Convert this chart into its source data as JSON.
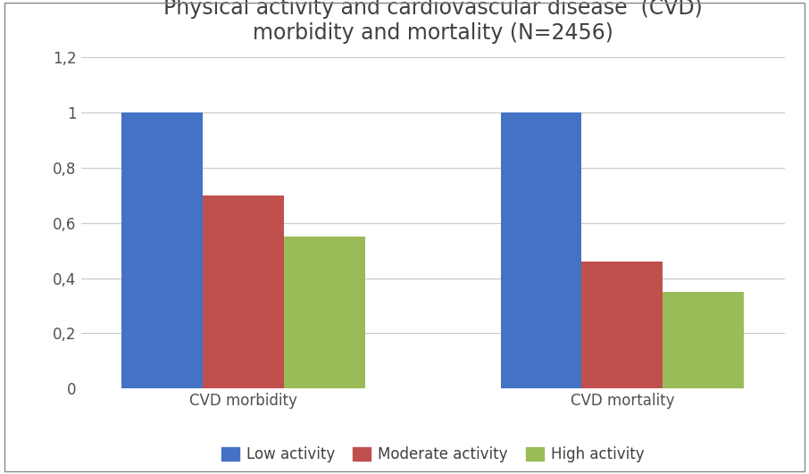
{
  "title_line1": "Physical activity and cardiovascular disease  (CVD)",
  "title_line2": "morbidity and mortality (N=2456)",
  "categories": [
    "CVD morbidity",
    "CVD mortality"
  ],
  "series": {
    "Low activity": {
      "values": [
        1.0,
        1.0
      ],
      "color": "#4472C4"
    },
    "Moderate activity": {
      "values": [
        0.7,
        0.46
      ],
      "color": "#C0504D"
    },
    "High activity": {
      "values": [
        0.55,
        0.35
      ],
      "color": "#9BBB59"
    }
  },
  "ylim": [
    0,
    1.2
  ],
  "yticks": [
    0,
    0.2,
    0.4,
    0.6,
    0.8,
    1.0,
    1.2
  ],
  "ytick_labels": [
    "0",
    "0,2",
    "0,4",
    "0,6",
    "0,8",
    "1",
    "1,2"
  ],
  "background_color": "#FFFFFF",
  "plot_bg_color": "#FFFFFF",
  "grid_color": "#C8C8C8",
  "bar_width": 0.15,
  "title_fontsize": 17,
  "tick_fontsize": 12,
  "legend_fontsize": 12,
  "xlabel_fontsize": 12,
  "outer_border_color": "#AAAAAA"
}
